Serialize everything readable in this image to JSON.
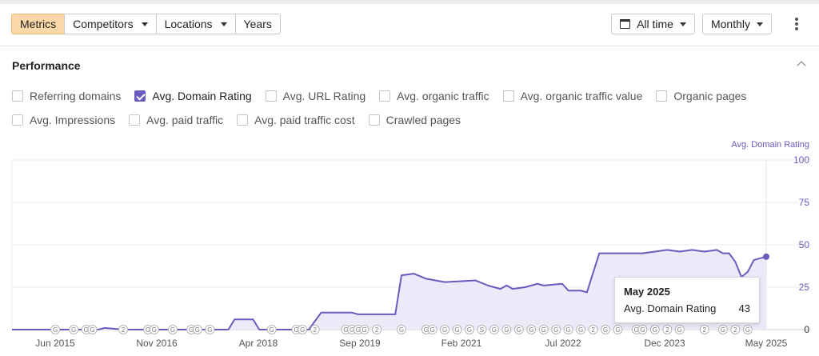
{
  "tabs": [
    {
      "label": "Metrics",
      "active": true,
      "dropdown": false
    },
    {
      "label": "Competitors",
      "active": false,
      "dropdown": true
    },
    {
      "label": "Locations",
      "active": false,
      "dropdown": true
    },
    {
      "label": "Years",
      "active": false,
      "dropdown": false
    }
  ],
  "controls": {
    "date_range": "All time",
    "interval": "Monthly",
    "date_icon": "calendar-icon",
    "more_icon": "more-vertical-icon"
  },
  "performance": {
    "title": "Performance",
    "collapse_icon": "chevron-up-icon",
    "checkboxes_row1": [
      {
        "label": "Referring domains",
        "checked": false
      },
      {
        "label": "Avg. Domain Rating",
        "checked": true
      },
      {
        "label": "Avg. URL Rating",
        "checked": false
      },
      {
        "label": "Avg. organic traffic",
        "checked": false
      },
      {
        "label": "Avg. organic traffic value",
        "checked": false
      },
      {
        "label": "Organic pages",
        "checked": false
      }
    ],
    "checkboxes_row2": [
      {
        "label": "Avg. Impressions",
        "checked": false
      },
      {
        "label": "Avg. paid traffic",
        "checked": false
      },
      {
        "label": "Avg. paid traffic cost",
        "checked": false
      },
      {
        "label": "Crawled pages",
        "checked": false
      }
    ]
  },
  "tooltip": {
    "date": "May 2025",
    "metric": "Avg. Domain Rating",
    "value": "43"
  },
  "colors": {
    "accent": "#6a5bbf",
    "area_fill": "#ece9f8",
    "active_tab": "#fcd7a7"
  },
  "chart_data": {
    "type": "area",
    "series_label": "Avg. Domain Rating",
    "x_ticks": [
      "Jun 2015",
      "Nov 2016",
      "Apr 2018",
      "Sep 2019",
      "Feb 2021",
      "Jul 2022",
      "Dec 2023",
      "May 2025"
    ],
    "y_ticks": [
      "100",
      "75",
      "50",
      "25",
      "0"
    ],
    "ylim": [
      0,
      100
    ],
    "x_range": [
      "2015-03",
      "2025-05"
    ],
    "grid": true,
    "points": [
      [
        "2015-03",
        0
      ],
      [
        "2016-05",
        0
      ],
      [
        "2016-06",
        1
      ],
      [
        "2016-09",
        0
      ],
      [
        "2018-02",
        0
      ],
      [
        "2018-03",
        6
      ],
      [
        "2018-06",
        6
      ],
      [
        "2018-07",
        0
      ],
      [
        "2019-03",
        0
      ],
      [
        "2019-05",
        10
      ],
      [
        "2019-10",
        10
      ],
      [
        "2019-11",
        9
      ],
      [
        "2020-05",
        9
      ],
      [
        "2020-06",
        32
      ],
      [
        "2020-08",
        33
      ],
      [
        "2020-10",
        30
      ],
      [
        "2021-01",
        28
      ],
      [
        "2021-06",
        29
      ],
      [
        "2021-08",
        26
      ],
      [
        "2021-10",
        24
      ],
      [
        "2021-11",
        26
      ],
      [
        "2021-12",
        24
      ],
      [
        "2022-02",
        25
      ],
      [
        "2022-04",
        27
      ],
      [
        "2022-05",
        26
      ],
      [
        "2022-08",
        27
      ],
      [
        "2022-09",
        23
      ],
      [
        "2022-11",
        23
      ],
      [
        "2022-12",
        22
      ],
      [
        "2023-02",
        45
      ],
      [
        "2023-06",
        45
      ],
      [
        "2023-09",
        45
      ],
      [
        "2023-11",
        46
      ],
      [
        "2024-01",
        47
      ],
      [
        "2024-03",
        46
      ],
      [
        "2024-05",
        47
      ],
      [
        "2024-07",
        46
      ],
      [
        "2024-09",
        47
      ],
      [
        "2024-10",
        45
      ],
      [
        "2024-11",
        45
      ],
      [
        "2024-12",
        40
      ],
      [
        "2025-01",
        31
      ],
      [
        "2025-02",
        34
      ],
      [
        "2025-03",
        41
      ],
      [
        "2025-04",
        42
      ],
      [
        "2025-05",
        43
      ]
    ],
    "markers": [
      {
        "date": "2015-10",
        "label": "G"
      },
      {
        "date": "2016-01",
        "label": "G"
      },
      {
        "date": "2016-03",
        "label": "G"
      },
      {
        "date": "2016-04",
        "label": "G"
      },
      {
        "date": "2016-09",
        "label": "2"
      },
      {
        "date": "2017-01",
        "label": "G"
      },
      {
        "date": "2017-02",
        "label": "G"
      },
      {
        "date": "2017-05",
        "label": "G"
      },
      {
        "date": "2017-08",
        "label": "G"
      },
      {
        "date": "2017-09",
        "label": "G"
      },
      {
        "date": "2017-11",
        "label": "G"
      },
      {
        "date": "2018-09",
        "label": "G"
      },
      {
        "date": "2019-01",
        "label": "G"
      },
      {
        "date": "2019-02",
        "label": "G"
      },
      {
        "date": "2019-04",
        "label": "2"
      },
      {
        "date": "2019-09",
        "label": "G"
      },
      {
        "date": "2019-10",
        "label": "G"
      },
      {
        "date": "2019-11",
        "label": "G"
      },
      {
        "date": "2019-12",
        "label": "G"
      },
      {
        "date": "2020-02",
        "label": "2"
      },
      {
        "date": "2020-06",
        "label": "G"
      },
      {
        "date": "2020-10",
        "label": "G"
      },
      {
        "date": "2020-11",
        "label": "G"
      },
      {
        "date": "2021-01",
        "label": "G"
      },
      {
        "date": "2021-03",
        "label": "G"
      },
      {
        "date": "2021-05",
        "label": "G"
      },
      {
        "date": "2021-07",
        "label": "S"
      },
      {
        "date": "2021-09",
        "label": "G"
      },
      {
        "date": "2021-11",
        "label": "G"
      },
      {
        "date": "2022-01",
        "label": "G"
      },
      {
        "date": "2022-03",
        "label": "G"
      },
      {
        "date": "2022-05",
        "label": "G"
      },
      {
        "date": "2022-07",
        "label": "G"
      },
      {
        "date": "2022-09",
        "label": "G"
      },
      {
        "date": "2022-11",
        "label": "G"
      },
      {
        "date": "2023-01",
        "label": "2"
      },
      {
        "date": "2023-03",
        "label": "G"
      },
      {
        "date": "2023-05",
        "label": "G"
      },
      {
        "date": "2023-08",
        "label": "G"
      },
      {
        "date": "2023-09",
        "label": "G"
      },
      {
        "date": "2023-11",
        "label": "G"
      },
      {
        "date": "2024-01",
        "label": "2"
      },
      {
        "date": "2024-03",
        "label": "G"
      },
      {
        "date": "2024-07",
        "label": "2"
      },
      {
        "date": "2024-10",
        "label": "G"
      },
      {
        "date": "2024-12",
        "label": "2"
      },
      {
        "date": "2025-02",
        "label": "G"
      }
    ]
  }
}
